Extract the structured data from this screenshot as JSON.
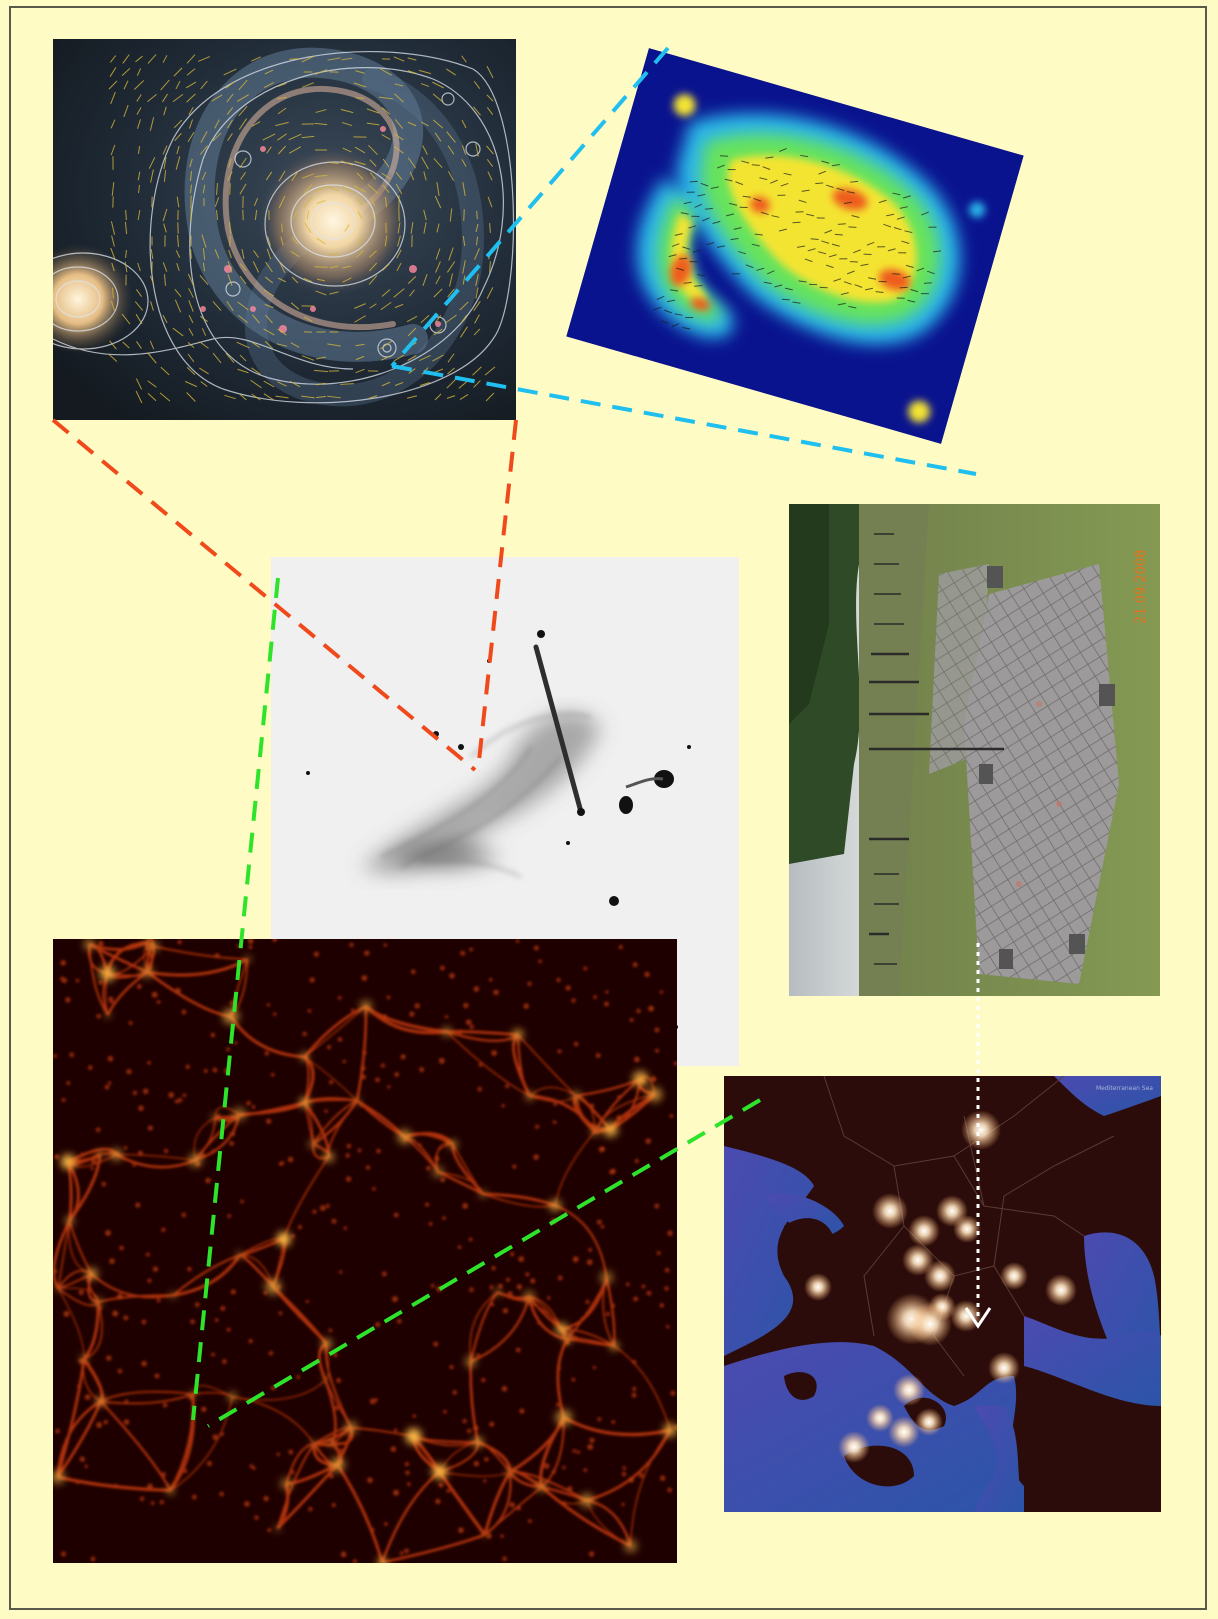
{
  "page": {
    "background": "#fffbc4",
    "border_color": "#5a5a4c"
  },
  "panels": [
    {
      "id": "spiral-galaxy",
      "icon": "spiral-galaxy-contour-map"
    },
    {
      "id": "polarization-heatmap",
      "icon": "radio-polarization-heatmap"
    },
    {
      "id": "radio-galaxy",
      "icon": "grayscale-radio-galaxy"
    },
    {
      "id": "antenna-field",
      "icon": "lofar-antenna-tiles-photo"
    },
    {
      "id": "cosmic-web",
      "icon": "cosmic-web-simulation"
    },
    {
      "id": "europe-night-map",
      "icon": "europe-night-map"
    }
  ],
  "photo": {
    "date_stamp": "21.09.2008",
    "date_color": "#e8701a"
  },
  "connectors": {
    "red": "#f04a1c",
    "cyan": "#1fbff0",
    "green": "#2ee42a",
    "white": "#ffffff"
  }
}
